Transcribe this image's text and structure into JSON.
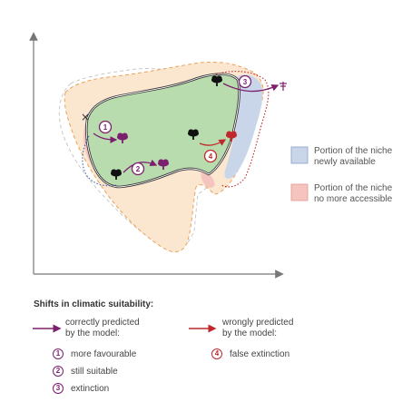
{
  "legend": {
    "newly_available_line1": "Portion of the niche",
    "newly_available_line2": "newly available",
    "no_longer_line1": "Portion of the niche",
    "no_longer_line2": "no more accessible",
    "colors": {
      "newly_available": "#c9d6ea",
      "no_longer_accessible": "#f6c4bf",
      "core_niche": "#b9dcae",
      "projected_niche": "#fbe6cf"
    }
  },
  "markers": {
    "n1": "1",
    "n2": "2",
    "n3": "3",
    "n4": "4",
    "cross": "×"
  },
  "shifts": {
    "title": "Shifts in climatic suitability:",
    "correct_line1": "correctly predicted",
    "correct_line2": "by the model:",
    "wrong_line1": "wrongly predicted",
    "wrong_line2": "by the model:",
    "items": [
      {
        "num": "1",
        "label": "more favourable"
      },
      {
        "num": "2",
        "label": "still suitable"
      },
      {
        "num": "3",
        "label": "extinction"
      },
      {
        "num": "4",
        "label": "false extinction"
      }
    ],
    "colors": {
      "correct": "#7b1f6e",
      "wrong": "#c0282d"
    }
  }
}
